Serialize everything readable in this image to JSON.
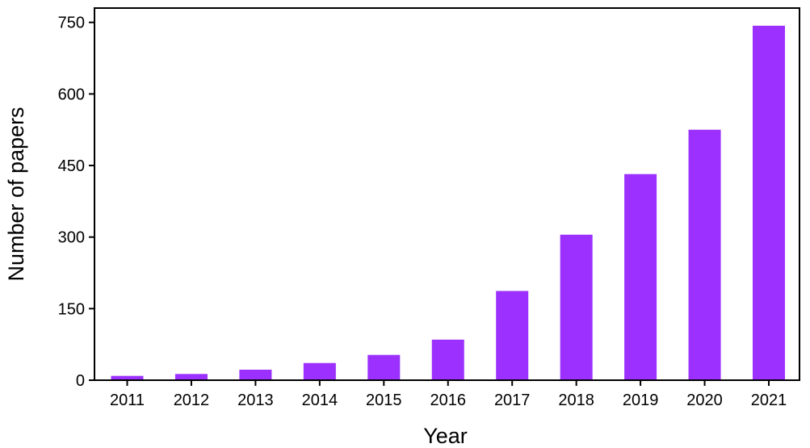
{
  "chart_data": {
    "type": "bar",
    "xlabel": "Year",
    "ylabel": "Number of papers",
    "categories": [
      "2011",
      "2012",
      "2013",
      "2014",
      "2015",
      "2016",
      "2017",
      "2018",
      "2019",
      "2020",
      "2021"
    ],
    "values": [
      9,
      13,
      22,
      36,
      53,
      85,
      187,
      305,
      432,
      525,
      743
    ],
    "ylim": [
      0,
      780
    ],
    "yticks": [
      "0",
      "150",
      "300",
      "450",
      "600",
      "750"
    ],
    "grid": false,
    "legend": "none",
    "bar_color": "#9b30ff"
  }
}
